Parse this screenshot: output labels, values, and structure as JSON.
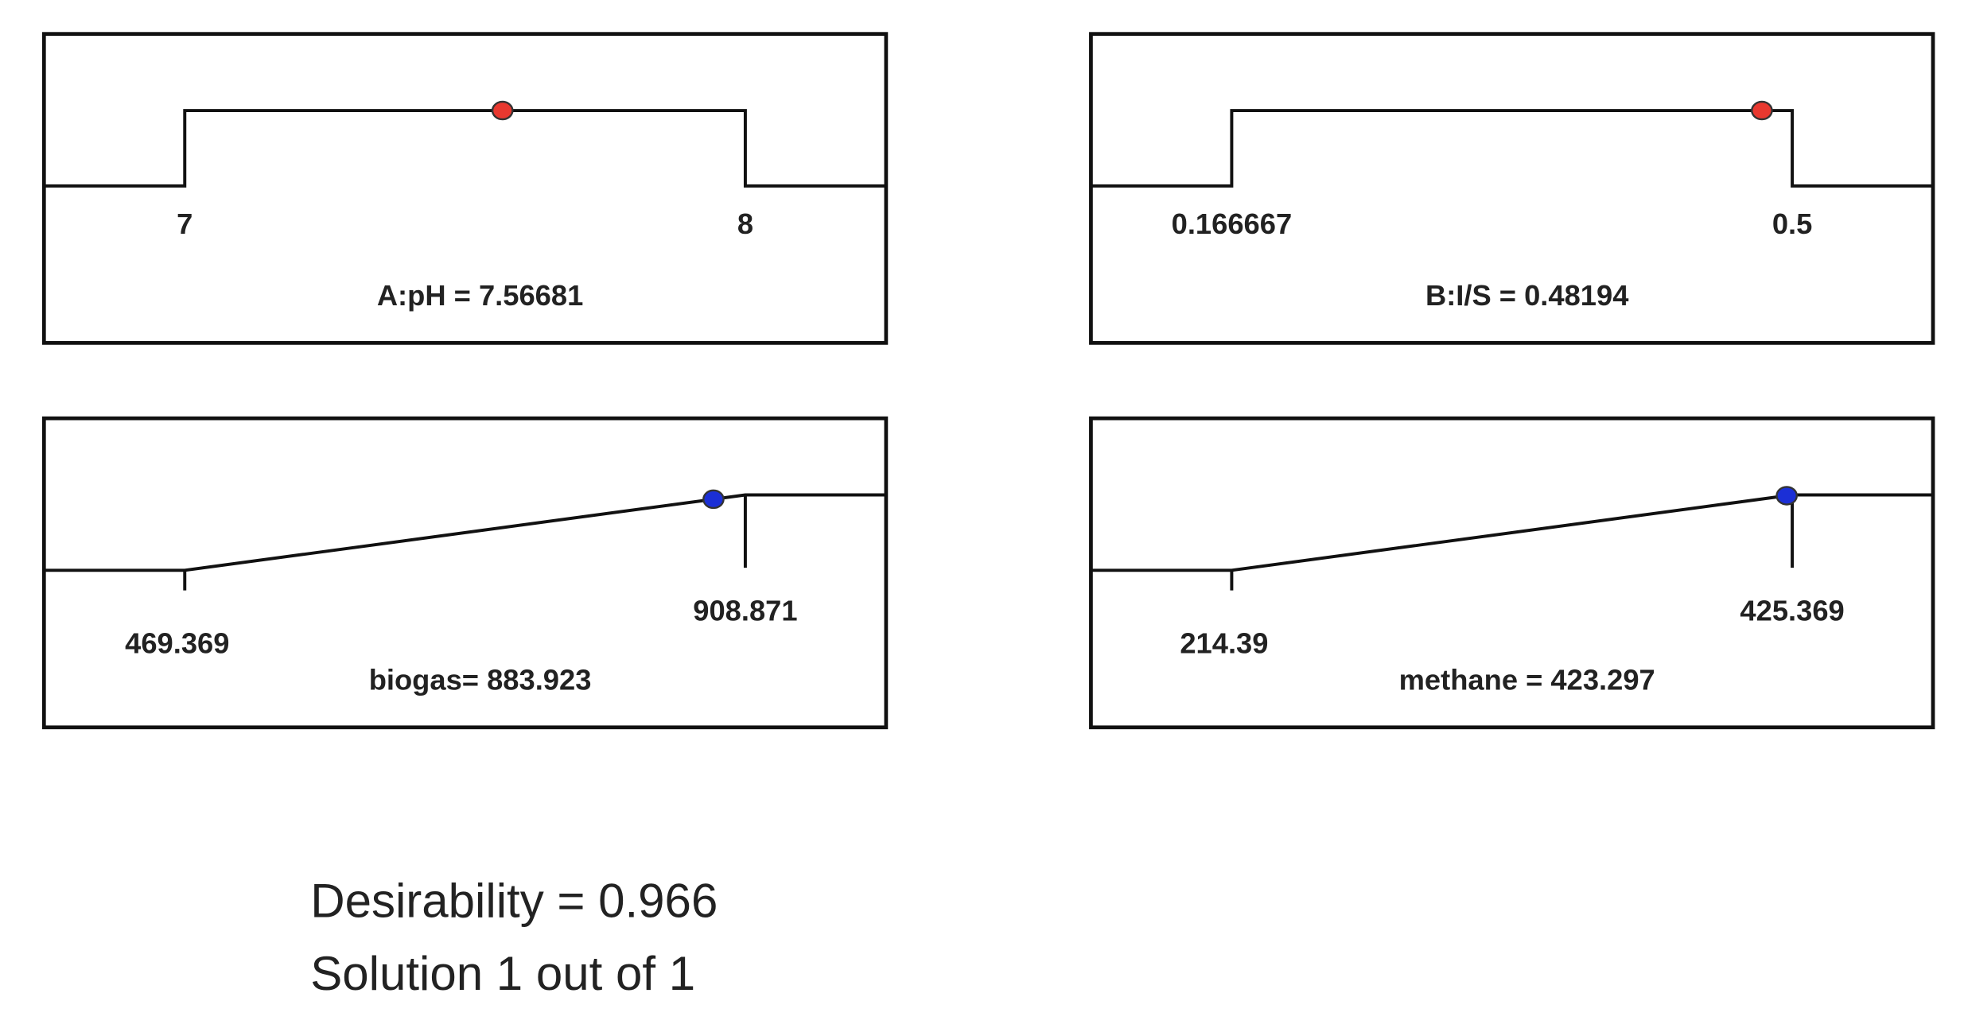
{
  "factors": [
    {
      "low": 7,
      "high": 8,
      "label": "A:pH = 7.56681",
      "value": 7.56681
    },
    {
      "low": 0.166667,
      "high": 0.5,
      "label": "B:I/S = 0.48194",
      "value": 0.48194
    }
  ],
  "responses": [
    {
      "low": 469.369,
      "high": 908.871,
      "label": "biogas= 883.923",
      "value": 883.923
    },
    {
      "low": 214.39,
      "high": 425.369,
      "label": "methane = 423.297",
      "value": 423.297
    }
  ],
  "desirability": "Desirability = 0.966",
  "solution": "Solution 1 out of 1"
}
